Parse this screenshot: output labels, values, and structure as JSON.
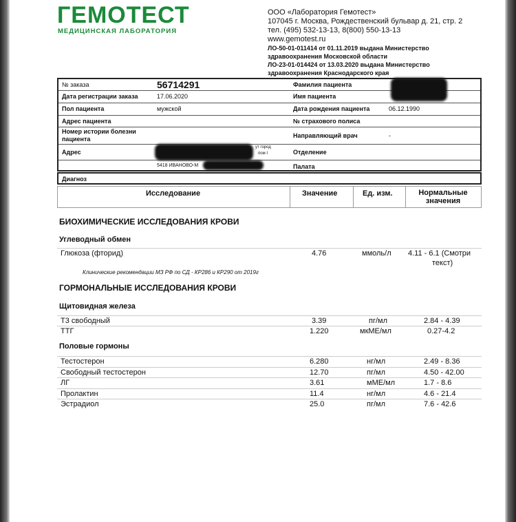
{
  "header": {
    "logo": "ГЕМОТЕСТ",
    "logo_sub": "МЕДИЦИНСКАЯ ЛАБОРАТОРИЯ",
    "brand_color": "#1a8a3a",
    "lines": [
      "ООО «Лаборатория Гемотест»",
      "107045 г. Москва, Рождественский бульвар д. 21, стр. 2",
      "тел. (495) 532-13-13, 8(800) 550-13-13",
      "www.gemotest.ru"
    ],
    "license_lines": [
      "ЛО-50-01-011414 от 01.11.2019 выдана Министерство",
      "здравоохранения Московской области",
      "ЛО-23-01-014424 от 13.03.2020 выдана Министерство",
      "здравоохранения Краснодарского края"
    ]
  },
  "patient": {
    "order_no_label": "№ заказа",
    "order_no": "56714291",
    "reg_date_label": "Дата регистрации заказа",
    "reg_date": "17.06.2020",
    "sex_label": "Пол пациента",
    "sex": "мужской",
    "address_label": "Адрес пациента",
    "history_label": "Номер истории болезни пациента",
    "addr_label": "Адрес",
    "addr_frag1": "ут город",
    "addr_frag2": "пом I",
    "addr_frag3": "5418 ИВАНОВО-М",
    "surname_label": "Фамилия пациента",
    "name_label": "Имя пациента",
    "dob_label": "Дата рождения пациента",
    "dob": "06.12.1990",
    "policy_label": "№ страхового полиса",
    "doctor_label": "Направляющий врач",
    "doctor": "-",
    "dept_label": "Отделение",
    "ward_label": "Палата",
    "diagnosis_label": "Диагноз"
  },
  "results": {
    "columns": [
      "Исследование",
      "Значение",
      "Ед. изм.",
      "Нормальные значения"
    ],
    "sec1": "БИОХИМИЧЕСКИЕ ИССЛЕДОВАНИЯ КРОВИ",
    "sub1": "Углеводный обмен",
    "glucose": {
      "name": "Глюкоза (фторид)",
      "value": "4.76",
      "unit": "ммоль/л",
      "norm1": "4.11 - 6.1 (Смотри",
      "norm2": "текст)"
    },
    "note": "Клинические рекомендации МЗ РФ по СД - КР286 и КР290 от 2019г",
    "sec2": "ГОРМОНАЛЬНЫЕ ИССЛЕДОВАНИЯ КРОВИ",
    "sub2": "Щитовидная железа",
    "thyroid": [
      {
        "name": "Т3 свободный",
        "value": "3.39",
        "unit": "пг/мл",
        "norm": "2.84 - 4.39"
      },
      {
        "name": "ТТГ",
        "value": "1.220",
        "unit": "мкМЕ/мл",
        "norm": "0.27-4.2"
      }
    ],
    "sub3": "Половые гормоны",
    "sex_hormones": [
      {
        "name": "Тестостерон",
        "value": "6.280",
        "unit": "нг/мл",
        "norm": "2.49 - 8.36"
      },
      {
        "name": "Свободный тестостерон",
        "value": "12.70",
        "unit": "пг/мл",
        "norm": "4.50 - 42.00"
      },
      {
        "name": "ЛГ",
        "value": "3.61",
        "unit": "мМЕ/мл",
        "norm": "1.7 - 8.6"
      },
      {
        "name": "Пролактин",
        "value": "11.4",
        "unit": "нг/мл",
        "norm": "4.6 - 21.4"
      },
      {
        "name": "Эстрадиол",
        "value": "25.0",
        "unit": "пг/мл",
        "norm": "7.6 - 42.6"
      }
    ]
  }
}
